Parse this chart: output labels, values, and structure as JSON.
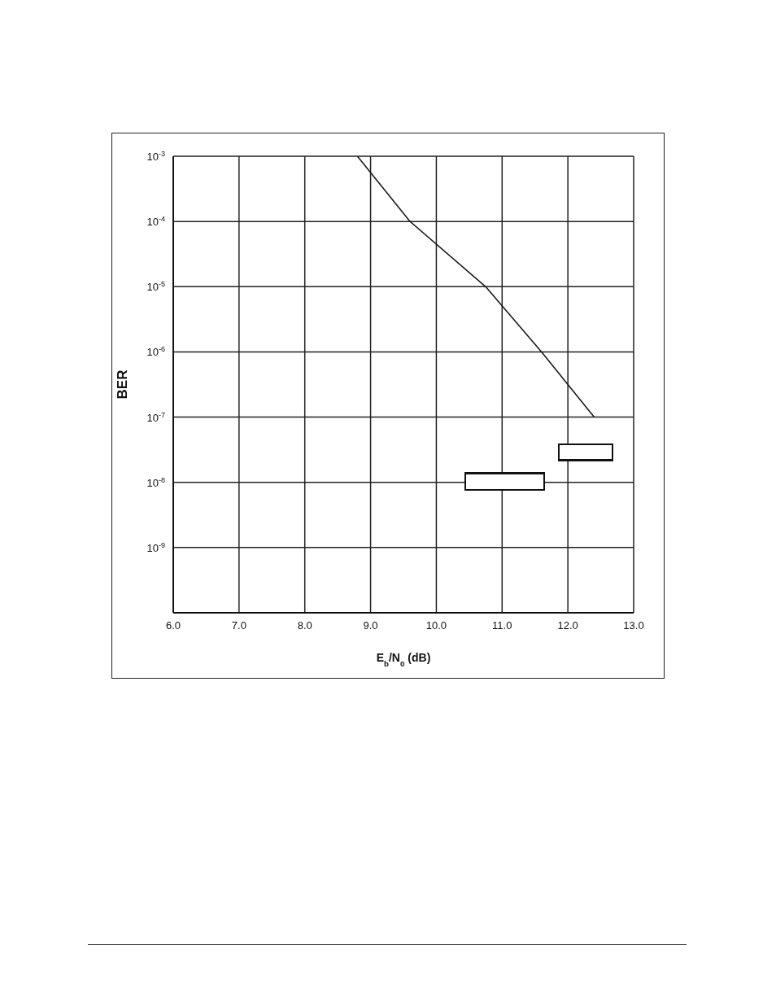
{
  "chart_data": {
    "type": "line",
    "xlabel": "E$_{b}$/N$_{0}$ (dB)",
    "ylabel": "BER",
    "x": [
      8.8,
      9.6,
      10.75,
      11.6,
      12.4
    ],
    "series": [
      {
        "color": "#1a1a1a",
        "values": [
          0.001,
          0.0001,
          1e-05,
          1e-06,
          1e-07
        ]
      }
    ],
    "xlim": [
      6,
      13
    ],
    "xticks": [
      {
        "value": 6,
        "label": "6.0"
      },
      {
        "value": 7,
        "label": "7.0"
      },
      {
        "value": 8,
        "label": "8.0"
      },
      {
        "value": 9,
        "label": "9.0"
      },
      {
        "value": 10,
        "label": "10.0"
      },
      {
        "value": 11,
        "label": "11.0"
      },
      {
        "value": 12,
        "label": "12.0"
      },
      {
        "value": 13,
        "label": "13.0"
      }
    ],
    "ylim": [
      1e-10,
      0.001
    ],
    "log": "y",
    "yticks": [
      {
        "value": 1e-10,
        "label": null
      },
      {
        "value": 1e-09,
        "label": "10$^{-9}$"
      },
      {
        "value": 1e-08,
        "label": "10$^{-8}$"
      },
      {
        "value": 1e-07,
        "label": "10$^{-7}$"
      },
      {
        "value": 1e-06,
        "label": "10$^{-6}$"
      },
      {
        "value": 1e-05,
        "label": "10$^{-5}$"
      },
      {
        "value": 0.0001,
        "label": "10$^{-4}$"
      },
      {
        "value": 0.001,
        "label": "10$^{-3}$"
      }
    ],
    "grid": true,
    "marker": "none",
    "line_style": "solid"
  }
}
